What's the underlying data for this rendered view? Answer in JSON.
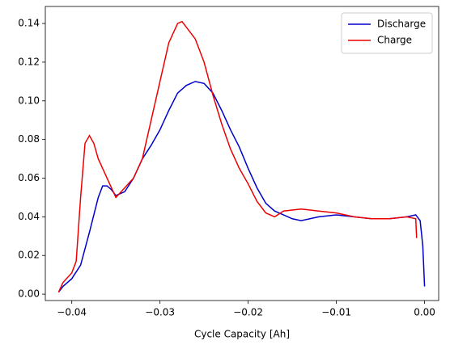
{
  "chart_data": {
    "type": "line",
    "xlabel": "Cycle Capacity [Ah]",
    "xlim": [
      -0.043,
      0.0016
    ],
    "ylim": [
      -0.0033,
      0.1488
    ],
    "xticks": [
      {
        "value": -0.04,
        "label": "−0.04"
      },
      {
        "value": -0.03,
        "label": "−0.03"
      },
      {
        "value": -0.02,
        "label": "−0.02"
      },
      {
        "value": -0.01,
        "label": "−0.01"
      },
      {
        "value": 0,
        "label": "0.00"
      }
    ],
    "yticks": [
      {
        "value": 0,
        "label": "0.00"
      },
      {
        "value": 0.02,
        "label": "0.02"
      },
      {
        "value": 0.04,
        "label": "0.04"
      },
      {
        "value": 0.06,
        "label": "0.06"
      },
      {
        "value": 0.08,
        "label": "0.08"
      },
      {
        "value": 0.1,
        "label": "0.10"
      },
      {
        "value": 0.12,
        "label": "0.12"
      },
      {
        "value": 0.14,
        "label": "0.14"
      }
    ],
    "legend": "upper right",
    "series": [
      {
        "name": "Discharge",
        "color": "#0000cc",
        "x": [
          -0.0415,
          -0.041,
          -0.04,
          -0.039,
          -0.038,
          -0.037,
          -0.0365,
          -0.036,
          -0.0355,
          -0.035,
          -0.034,
          -0.033,
          -0.032,
          -0.031,
          -0.03,
          -0.029,
          -0.028,
          -0.027,
          -0.026,
          -0.025,
          -0.024,
          -0.023,
          -0.022,
          -0.021,
          -0.02,
          -0.019,
          -0.018,
          -0.017,
          -0.016,
          -0.015,
          -0.014,
          -0.013,
          -0.012,
          -0.01,
          -0.008,
          -0.006,
          -0.004,
          -0.002,
          -0.001,
          -0.0005,
          -0.0002,
          0
        ],
        "values": [
          0.001,
          0.004,
          0.008,
          0.015,
          0.032,
          0.05,
          0.056,
          0.056,
          0.054,
          0.051,
          0.053,
          0.06,
          0.07,
          0.077,
          0.085,
          0.095,
          0.104,
          0.108,
          0.11,
          0.109,
          0.104,
          0.095,
          0.085,
          0.076,
          0.065,
          0.055,
          0.047,
          0.043,
          0.041,
          0.039,
          0.038,
          0.039,
          0.04,
          0.041,
          0.04,
          0.039,
          0.039,
          0.04,
          0.041,
          0.038,
          0.025,
          0.004
        ]
      },
      {
        "name": "Charge",
        "color": "#ee0000",
        "x": [
          -0.0415,
          -0.041,
          -0.04,
          -0.0395,
          -0.039,
          -0.0385,
          -0.038,
          -0.0375,
          -0.037,
          -0.036,
          -0.035,
          -0.034,
          -0.033,
          -0.032,
          -0.031,
          -0.03,
          -0.029,
          -0.028,
          -0.0275,
          -0.027,
          -0.026,
          -0.025,
          -0.024,
          -0.023,
          -0.022,
          -0.021,
          -0.02,
          -0.019,
          -0.018,
          -0.017,
          -0.016,
          -0.014,
          -0.012,
          -0.01,
          -0.008,
          -0.006,
          -0.004,
          -0.002,
          -0.001,
          -0.0009
        ],
        "values": [
          0.001,
          0.006,
          0.011,
          0.017,
          0.05,
          0.078,
          0.082,
          0.078,
          0.07,
          0.06,
          0.05,
          0.055,
          0.06,
          0.07,
          0.09,
          0.11,
          0.13,
          0.14,
          0.141,
          0.138,
          0.132,
          0.12,
          0.103,
          0.088,
          0.075,
          0.065,
          0.057,
          0.048,
          0.042,
          0.04,
          0.043,
          0.044,
          0.043,
          0.042,
          0.04,
          0.039,
          0.039,
          0.04,
          0.039,
          0.029
        ]
      }
    ]
  }
}
